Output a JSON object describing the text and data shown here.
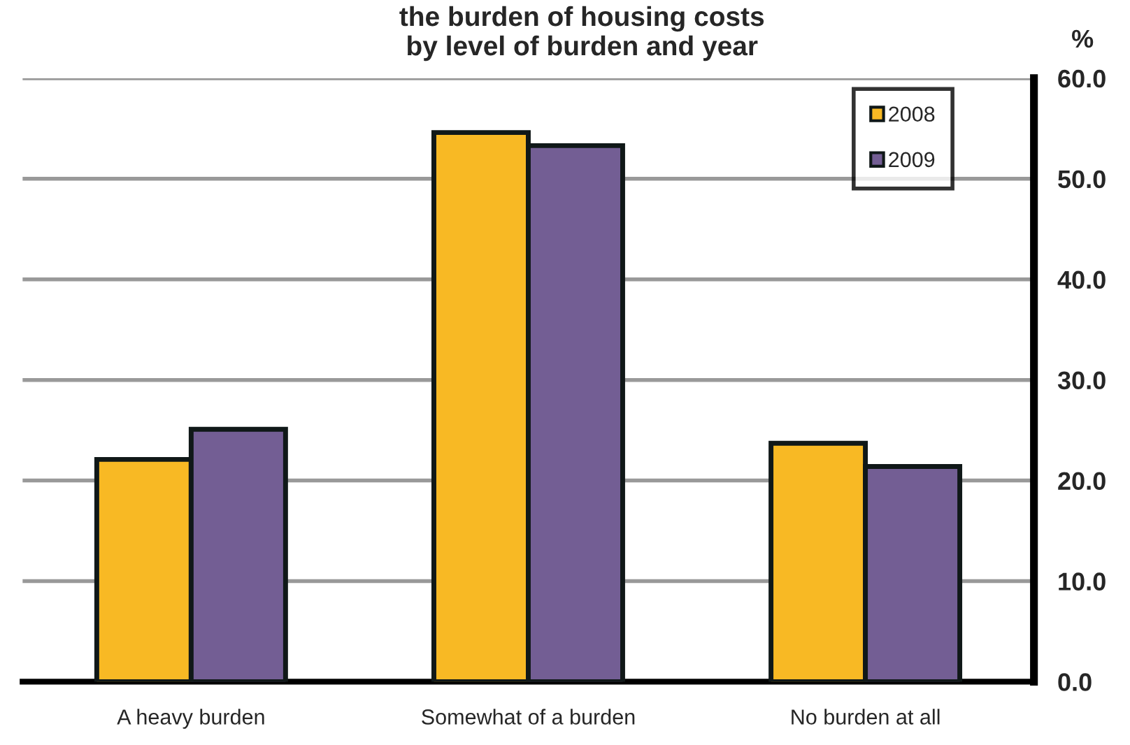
{
  "chart_data": {
    "type": "bar",
    "title": "the burden of housing costs\nby level of burden and year",
    "ylabel": "%",
    "categories": [
      "A heavy burden",
      "Somewhat of a burden",
      "No burden at all"
    ],
    "series": [
      {
        "name": "2008",
        "color": "#f8b924",
        "values": [
          22.1,
          54.6,
          23.7
        ]
      },
      {
        "name": "2009",
        "color": "#735e94",
        "values": [
          25.1,
          53.3,
          21.4
        ]
      }
    ],
    "ylim": [
      0,
      60
    ],
    "yticks": [
      {
        "value": 0,
        "label": "0.0"
      },
      {
        "value": 10,
        "label": "10.0"
      },
      {
        "value": 20,
        "label": "20.0"
      },
      {
        "value": 30,
        "label": "30.0"
      },
      {
        "value": 40,
        "label": "40.0"
      },
      {
        "value": 50,
        "label": "50.0"
      },
      {
        "value": 60,
        "label": "60.0"
      }
    ],
    "grid": "y",
    "legend": "top right"
  }
}
